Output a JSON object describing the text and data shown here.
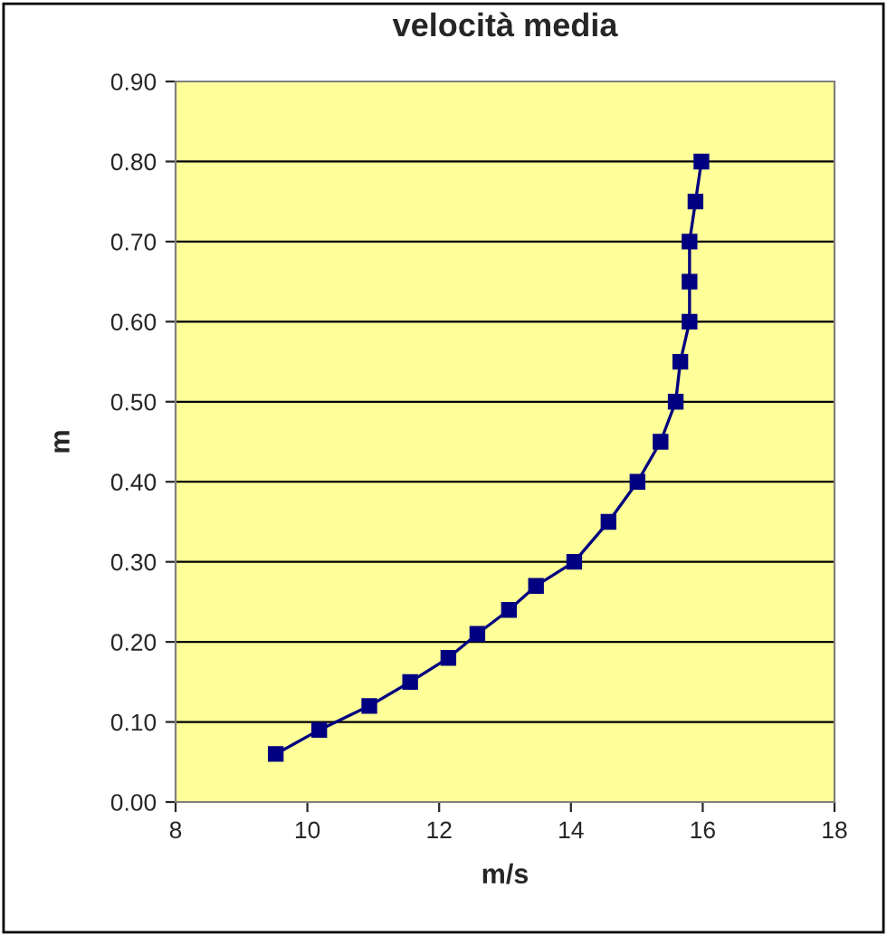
{
  "chart_data": {
    "type": "line",
    "title": "velocità media",
    "xlabel": "m/s",
    "ylabel": "m",
    "x": [
      9.52,
      10.18,
      10.94,
      11.56,
      12.14,
      12.58,
      13.06,
      13.47,
      14.05,
      14.57,
      15.01,
      15.36,
      15.59,
      15.66,
      15.8,
      15.8,
      15.8,
      15.89,
      15.98
    ],
    "series": [
      {
        "color": "#000080",
        "values": [
          0.06,
          0.09,
          0.12,
          0.15,
          0.18,
          0.21,
          0.24,
          0.27,
          0.3,
          0.35,
          0.4,
          0.45,
          0.5,
          0.55,
          0.6,
          0.65,
          0.7,
          0.75,
          0.8
        ]
      }
    ],
    "xlim": [
      8,
      18
    ],
    "xticks": [
      8,
      10,
      12,
      14,
      16,
      18
    ],
    "ylim": [
      0,
      0.9
    ],
    "yticks": [
      {
        "value": 0,
        "label": "0.00"
      },
      {
        "value": 0.1,
        "label": "0.10"
      },
      {
        "value": 0.2,
        "label": "0.20"
      },
      {
        "value": 0.3,
        "label": "0.30"
      },
      {
        "value": 0.4,
        "label": "0.40"
      },
      {
        "value": 0.5,
        "label": "0.50"
      },
      {
        "value": 0.6,
        "label": "0.60"
      },
      {
        "value": 0.7,
        "label": "0.70"
      },
      {
        "value": 0.8,
        "label": "0.80"
      },
      {
        "value": 0.9,
        "label": "0.90"
      }
    ],
    "grid": "y",
    "marker": "square",
    "line_style": "solid"
  }
}
